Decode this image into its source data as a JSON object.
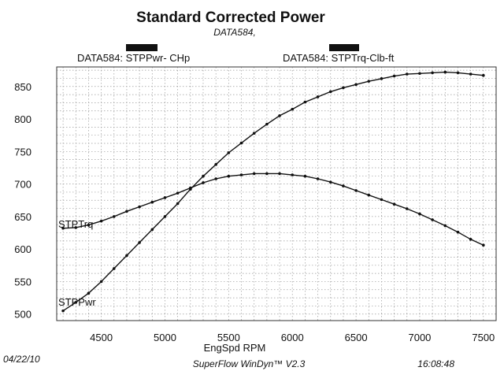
{
  "chart_data": {
    "type": "line",
    "title": "Standard Corrected Power",
    "subtitle": "DATA584,",
    "legend": [
      {
        "label": "DATA584: STPPwr- CHp",
        "color": "#111111"
      },
      {
        "label": "DATA584: STPTrq-Clb-ft",
        "color": "#111111"
      }
    ],
    "xlabel": "EngSpd RPM",
    "xlim": [
      4150,
      7600
    ],
    "ylim": [
      490,
      880
    ],
    "xticks": [
      4500,
      5000,
      5500,
      6000,
      6500,
      7000,
      7500
    ],
    "yticks": [
      500,
      550,
      600,
      650,
      700,
      750,
      800,
      850
    ],
    "grid": true,
    "series": [
      {
        "name": "STPTrq",
        "x": [
          4200,
          4300,
          4400,
          4500,
          4600,
          4700,
          4800,
          4900,
          5000,
          5100,
          5200,
          5300,
          5400,
          5500,
          5600,
          5700,
          5800,
          5900,
          6000,
          6100,
          6200,
          6300,
          6400,
          6500,
          6600,
          6700,
          6800,
          6900,
          7000,
          7100,
          7200,
          7300,
          7400,
          7500
        ],
        "values": [
          632,
          633,
          637,
          643,
          650,
          658,
          665,
          672,
          679,
          686,
          694,
          702,
          708,
          712,
          714,
          716,
          716,
          716,
          714,
          712,
          708,
          703,
          697,
          690,
          683,
          676,
          669,
          662,
          654,
          645,
          636,
          626,
          615,
          606
        ]
      },
      {
        "name": "STPPwr",
        "x": [
          4200,
          4300,
          4400,
          4500,
          4600,
          4700,
          4800,
          4900,
          5000,
          5100,
          5200,
          5300,
          5400,
          5500,
          5600,
          5700,
          5800,
          5900,
          6000,
          6100,
          6200,
          6300,
          6400,
          6500,
          6600,
          6700,
          6800,
          6900,
          7000,
          7100,
          7200,
          7300,
          7400,
          7500
        ],
        "values": [
          505,
          518,
          532,
          550,
          570,
          590,
          610,
          630,
          650,
          670,
          692,
          712,
          730,
          748,
          763,
          778,
          792,
          805,
          815,
          826,
          834,
          842,
          848,
          853,
          858,
          862,
          866,
          869,
          870,
          871,
          872,
          871,
          869,
          867
        ]
      }
    ]
  },
  "footer": {
    "date": "04/22/10",
    "software": "SuperFlow WinDyn™ V2.3",
    "time": "16:08:48"
  }
}
